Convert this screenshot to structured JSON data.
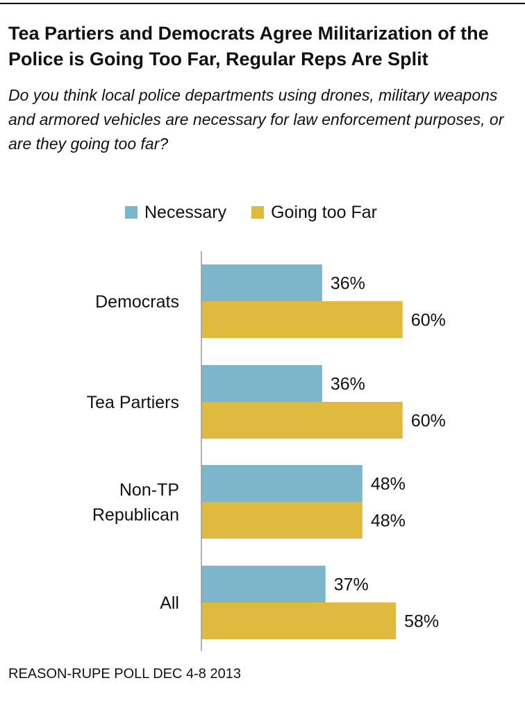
{
  "chart_data": {
    "type": "bar",
    "orientation": "horizontal",
    "title": "Tea Partiers and Democrats Agree Militarization of the Police is Going Too Far, Regular Reps Are Split",
    "subtitle": "Do you think local police departments using drones, military weapons and armored vehicles are necessary for law enforcement purposes, or are they going too far?",
    "categories": [
      "Democrats",
      "Tea Partiers",
      "Non-TP\nRepublican",
      "All"
    ],
    "series": [
      {
        "name": "Necessary",
        "values": [
          36,
          36,
          48,
          37
        ],
        "labels": [
          "36%",
          "36%",
          "48%",
          "37%"
        ],
        "color": "#7db6cb"
      },
      {
        "name": "Going too Far",
        "values": [
          60,
          60,
          48,
          58
        ],
        "labels": [
          "60%",
          "60%",
          "48%",
          "58%"
        ],
        "color": "#e0ba3e"
      }
    ],
    "xlim": [
      0,
      100
    ],
    "grid": false,
    "legend": "top",
    "source": "REASON-RUPE POLL DEC 4-8 2013"
  }
}
